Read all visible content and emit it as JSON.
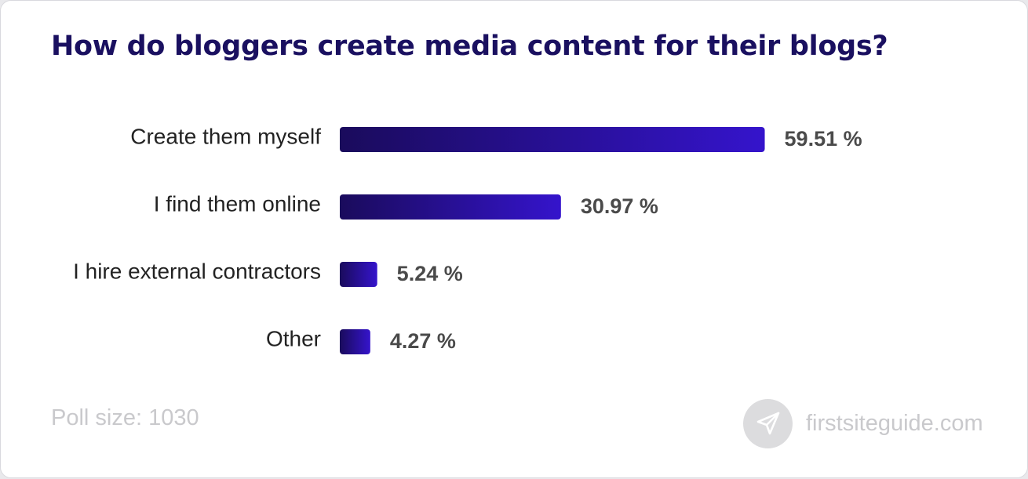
{
  "chart_data": {
    "type": "bar",
    "orientation": "horizontal",
    "title": "How do bloggers create media content for their blogs?",
    "categories": [
      "Create them myself",
      "I find them online",
      "I hire external contractors",
      "Other"
    ],
    "values": [
      59.51,
      30.97,
      5.24,
      4.27
    ],
    "value_labels": [
      "59.51 %",
      "30.97 %",
      "5.24 %",
      "4.27 %"
    ],
    "xlim": [
      0,
      100
    ],
    "grid": false,
    "legend": "none"
  },
  "footer": {
    "poll_size": "Poll size: 1030",
    "brand": "firstsiteguide.com",
    "brand_icon": "paper-plane-icon"
  },
  "colors": {
    "title": "#1a1060",
    "bar_start": "#1a0b5c",
    "bar_end": "#3514cc",
    "value_label": "#4a4a4a",
    "footer_text": "#c9c9cc"
  }
}
